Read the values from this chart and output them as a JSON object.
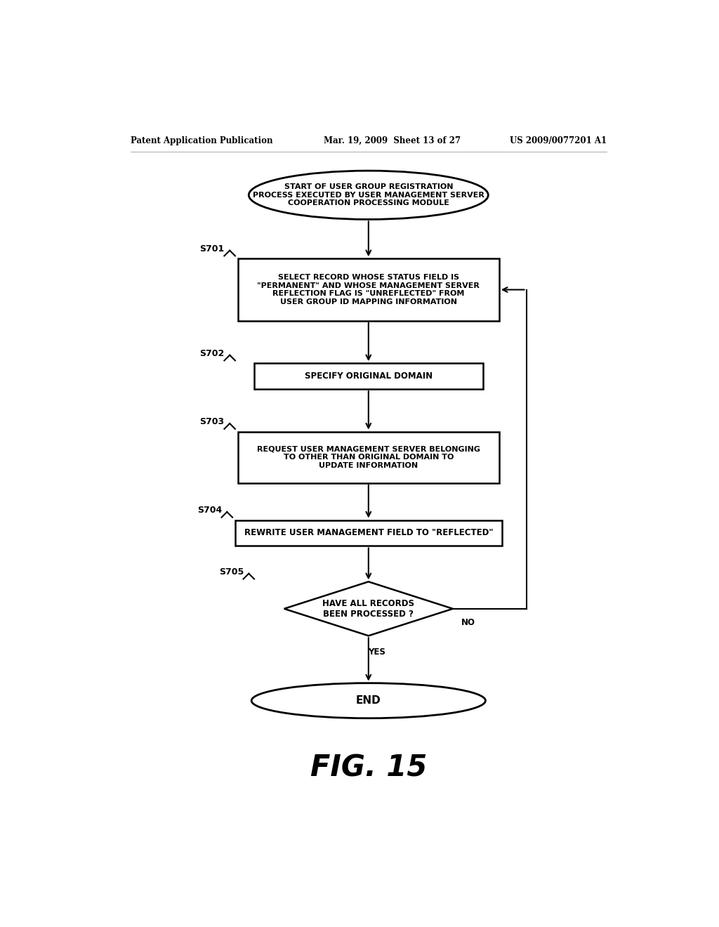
{
  "bg_color": "#ffffff",
  "header_left": "Patent Application Publication",
  "header_mid": "Mar. 19, 2009  Sheet 13 of 27",
  "header_right": "US 2009/0077201 A1",
  "fig_label": "FIG. 15",
  "start_text": "START OF USER GROUP REGISTRATION\nPROCESS EXECUTED BY USER MANAGEMENT SERVER\nCOOPERATION PROCESSING MODULE",
  "s701_label": "S701",
  "box1_text": "SELECT RECORD WHOSE STATUS FIELD IS\n\"PERMANENT\" AND WHOSE MANAGEMENT SERVER\nREFLECTION FLAG IS \"UNREFLECTED\" FROM\nUSER GROUP ID MAPPING INFORMATION",
  "s702_label": "S702",
  "box2_text": "SPECIFY ORIGINAL DOMAIN",
  "s703_label": "S703",
  "box3_text": "REQUEST USER MANAGEMENT SERVER BELONGING\nTO OTHER THAN ORIGINAL DOMAIN TO\nUPDATE INFORMATION",
  "s704_label": "S704",
  "box4_text": "REWRITE USER MANAGEMENT FIELD TO \"REFLECTED\"",
  "s705_label": "S705",
  "diamond_text": "HAVE ALL RECORDS\nBEEN PROCESSED ?",
  "yes_label": "YES",
  "no_label": "NO",
  "end_text": "END",
  "line_color": "#000000",
  "text_color": "#000000",
  "box_fill": "#ffffff",
  "font_size_header": 8.5,
  "font_size_fig": 28
}
